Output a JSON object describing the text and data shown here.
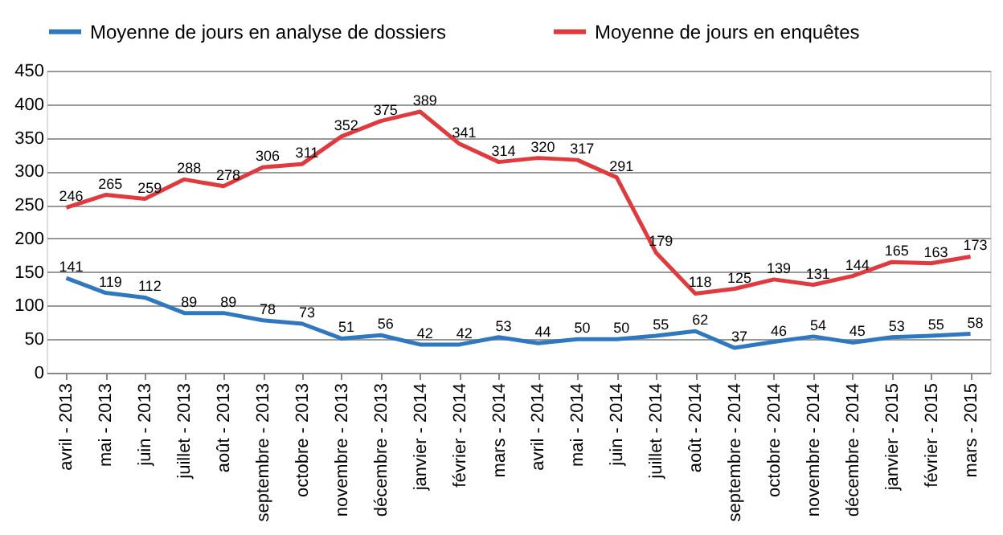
{
  "chart_data": {
    "type": "line",
    "categories": [
      "avril - 2013",
      "mai - 2013",
      "juin - 2013",
      "juillet - 2013",
      "août - 2013",
      "septembre - 2013",
      "octobre - 2013",
      "novembre - 2013",
      "décembre - 2013",
      "janvier - 2014",
      "février - 2014",
      "mars - 2014",
      "avril - 2014",
      "mai - 2014",
      "juin - 2014",
      "juillet - 2014",
      "août - 2014",
      "septembre - 2014",
      "octobre - 2014",
      "novembre - 2014",
      "décembre - 2014",
      "janvier - 2015",
      "février - 2015",
      "mars - 2015"
    ],
    "series": [
      {
        "name": "Moyenne de jours en analyse de dossiers",
        "color": "#2f78c0",
        "values": [
          141,
          119,
          112,
          89,
          89,
          78,
          73,
          51,
          56,
          42,
          42,
          53,
          44,
          50,
          50,
          55,
          62,
          37,
          46,
          54,
          45,
          53,
          55,
          58
        ]
      },
      {
        "name": "Moyenne de jours en enquêtes",
        "color": "#e0393e",
        "values": [
          246,
          265,
          259,
          288,
          278,
          306,
          311,
          352,
          375,
          389,
          341,
          314,
          320,
          317,
          291,
          179,
          118,
          125,
          139,
          131,
          144,
          165,
          163,
          173
        ]
      }
    ],
    "ylim": [
      0,
      450
    ],
    "yticks": [
      0,
      50,
      100,
      150,
      200,
      250,
      300,
      350,
      400,
      450
    ],
    "grid": "y",
    "legend": "top",
    "data_labels": true,
    "marker": "none",
    "line_style": "solid"
  }
}
